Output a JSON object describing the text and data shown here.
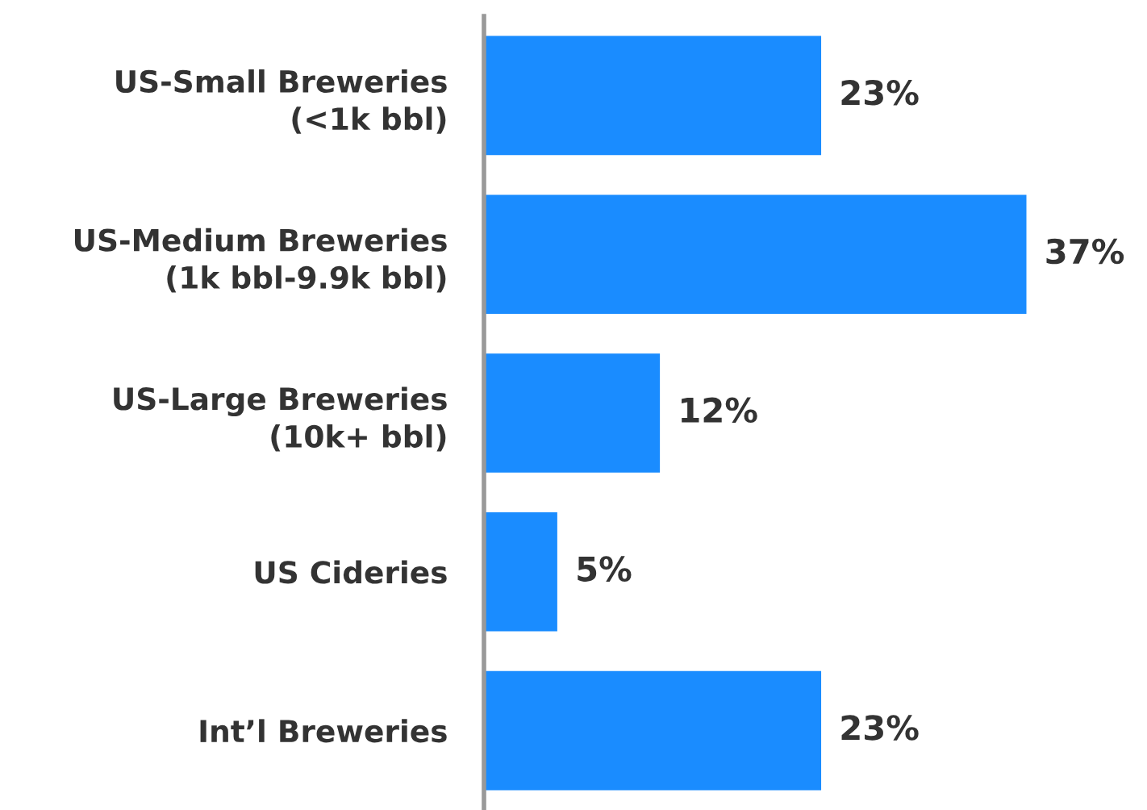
{
  "chart_data": {
    "type": "bar",
    "orientation": "horizontal",
    "categories": [
      "US-Small Breweries\n(<1k bbl)",
      "US-Medium Breweries\n(1k bbl-9.9k bbl)",
      "US-Large Breweries\n(10k+ bbl)",
      "US Cideries",
      "Int’l Breweries"
    ],
    "values": [
      23,
      37,
      12,
      5,
      23
    ],
    "value_labels": [
      "23%",
      "37%",
      "12%",
      "5%",
      "23%"
    ],
    "color": "#1a8cff",
    "grid": false,
    "legend": false
  }
}
